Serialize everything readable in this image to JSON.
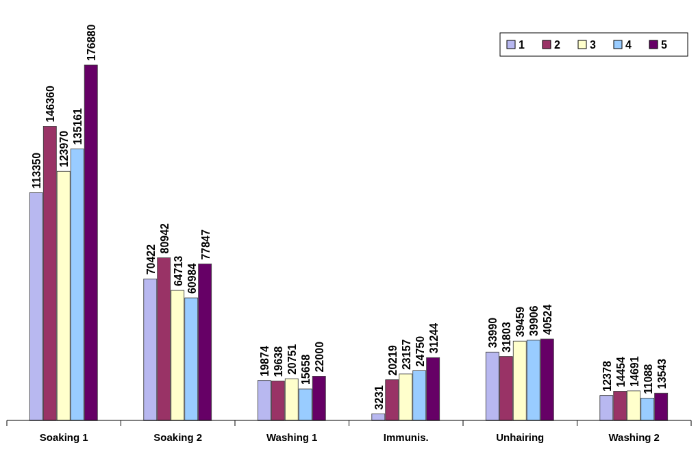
{
  "chart_data": {
    "type": "bar",
    "categories": [
      "Soaking 1",
      "Soaking 2",
      "Washing 1",
      "Immunis.",
      "Unhairing",
      "Washing 2"
    ],
    "series": [
      {
        "name": "1",
        "color": "#b8b8f0",
        "values": [
          113350,
          70422,
          19874,
          3231,
          33990,
          12378
        ]
      },
      {
        "name": "2",
        "color": "#993366",
        "values": [
          146360,
          80942,
          19638,
          20219,
          31803,
          14454
        ]
      },
      {
        "name": "3",
        "color": "#ffffcc",
        "values": [
          123970,
          64713,
          20751,
          23157,
          39459,
          14691
        ]
      },
      {
        "name": "4",
        "color": "#99ccff",
        "values": [
          135161,
          60984,
          15658,
          24750,
          39906,
          11088
        ]
      },
      {
        "name": "5",
        "color": "#660066",
        "values": [
          176880,
          77847,
          22000,
          31244,
          40524,
          13543
        ]
      }
    ],
    "data_labels": true,
    "legend": "top right"
  }
}
